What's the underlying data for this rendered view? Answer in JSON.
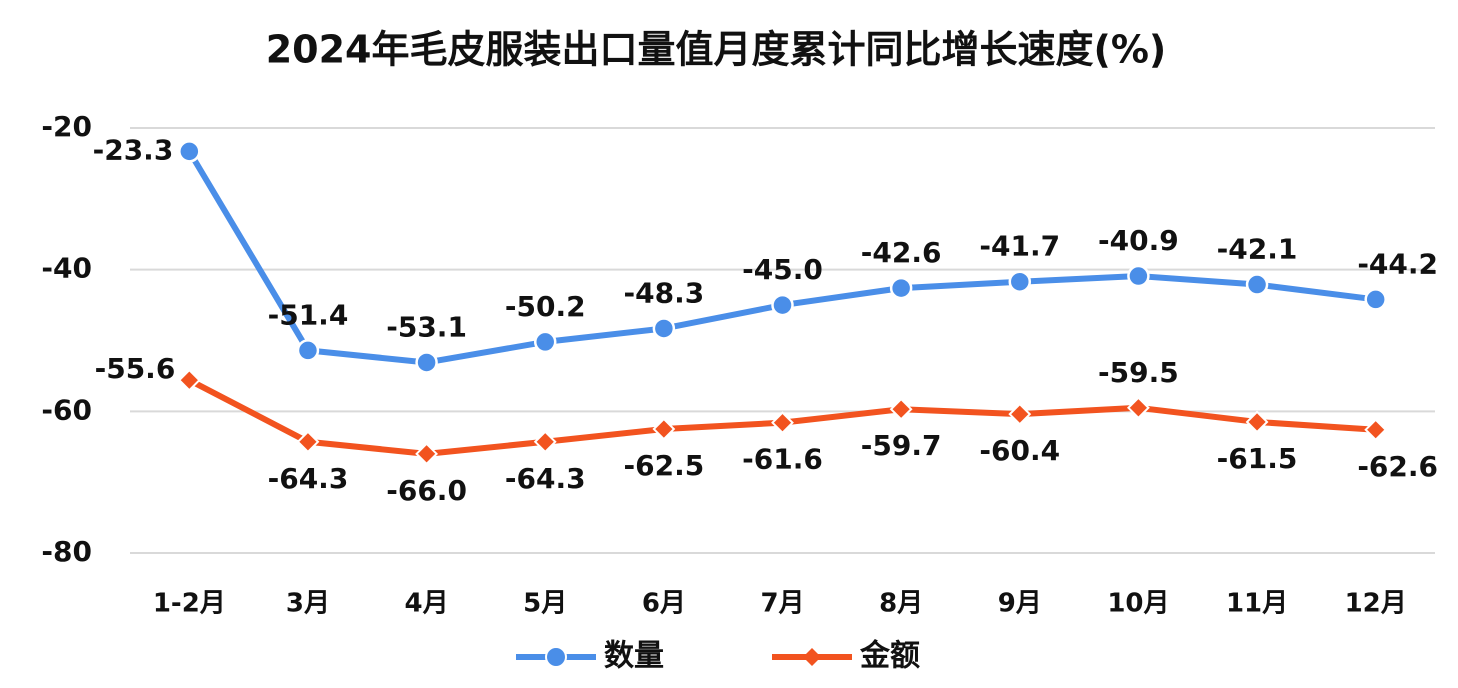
{
  "chart_data": {
    "type": "line",
    "title": "2024年毛皮服装出口量值月度累计同比增长速度(%)",
    "categories": [
      "1-2月",
      "3月",
      "4月",
      "5月",
      "6月",
      "7月",
      "8月",
      "9月",
      "10月",
      "11月",
      "12月"
    ],
    "series": [
      {
        "name": "数量",
        "color": "#4a8ee8",
        "marker": "circle",
        "values": [
          -23.3,
          -51.4,
          -53.1,
          -50.2,
          -48.3,
          -45.0,
          -42.6,
          -41.7,
          -40.9,
          -42.1,
          -44.2
        ],
        "value_labels": [
          "-23.3",
          "-51.4",
          "-53.1",
          "-50.2",
          "-48.3",
          "-45.0",
          "-42.6",
          "-41.7",
          "-40.9",
          "-42.1",
          "-44.2"
        ]
      },
      {
        "name": "金额",
        "color": "#f2531f",
        "marker": "diamond",
        "values": [
          -55.6,
          -64.3,
          -66.0,
          -64.3,
          -62.5,
          -61.6,
          -59.7,
          -60.4,
          -59.5,
          -61.5,
          -62.6
        ],
        "value_labels": [
          "-55.6",
          "-64.3",
          "-66.0",
          "-64.3",
          "-62.5",
          "-61.6",
          "-59.7",
          "-60.4",
          "-59.5",
          "-61.5",
          "-62.6"
        ]
      }
    ],
    "ylim": [
      -80,
      -20
    ],
    "yticks": [
      -20,
      -40,
      -60,
      -80
    ],
    "grid": true,
    "legend": "bottom"
  }
}
